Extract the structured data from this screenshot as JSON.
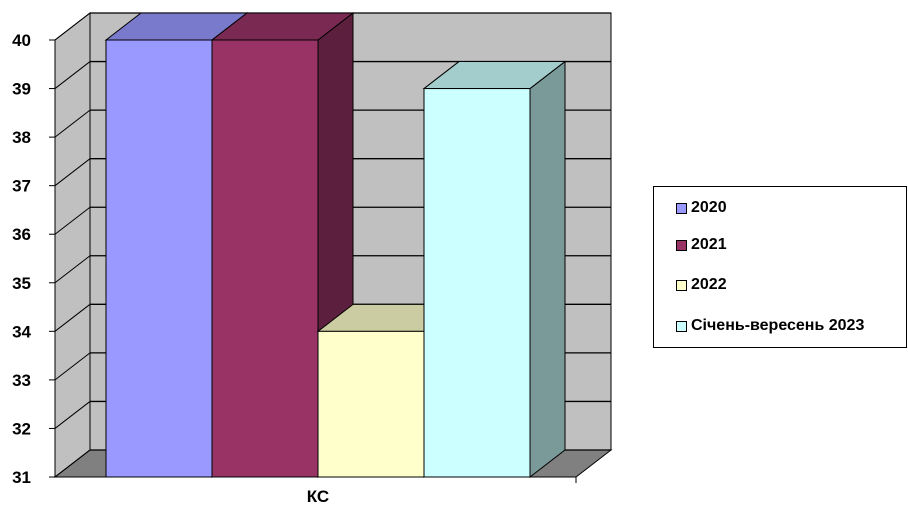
{
  "chart_data": {
    "type": "bar",
    "categories": [
      "КС"
    ],
    "series": [
      {
        "name": "2020",
        "values": [
          40
        ],
        "color": "#9999ff"
      },
      {
        "name": "2021",
        "values": [
          40
        ],
        "color": "#993366"
      },
      {
        "name": "2022",
        "values": [
          34
        ],
        "color": "#ffffcc"
      },
      {
        "name": "Січень-вересень 2023",
        "values": [
          39
        ],
        "color": "#ccffff"
      }
    ],
    "title": "",
    "xlabel": "",
    "ylabel": "",
    "ylim": [
      31,
      40
    ],
    "yticks": [
      31,
      32,
      33,
      34,
      35,
      36,
      37,
      38,
      39,
      40
    ],
    "grid": true,
    "legend_position": "right",
    "style": "3d-clustered-column"
  }
}
